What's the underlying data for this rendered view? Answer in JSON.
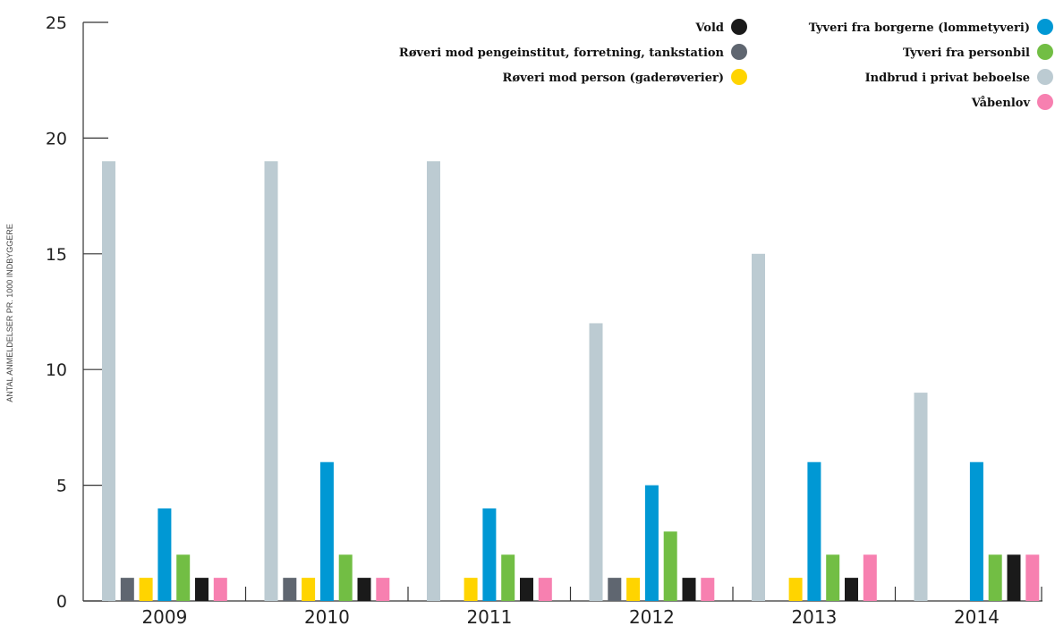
{
  "chart_data": {
    "type": "bar",
    "ylabel": "ANTAL ANMELDELSER PR. 1000 INDBYGGERE",
    "xlabel": "",
    "ylim": [
      0,
      25
    ],
    "yticks": [
      0,
      5,
      10,
      15,
      20,
      25
    ],
    "grid": false,
    "legend_position": "top-right",
    "categories": [
      "2009",
      "2010",
      "2011",
      "2012",
      "2013",
      "2014"
    ],
    "series": [
      {
        "name": "Indbrud i privat beboelse",
        "color": "#bccbd2",
        "values": [
          19,
          19,
          19,
          12,
          15,
          9
        ]
      },
      {
        "name": "Røveri mod pengeinstitut, forretning, tankstation",
        "color": "#5f6670",
        "values": [
          1,
          1,
          0,
          1,
          0,
          0
        ]
      },
      {
        "name": "Røveri mod person (gaderøverier)",
        "color": "#ffd400",
        "values": [
          1,
          1,
          1,
          1,
          1,
          0
        ]
      },
      {
        "name": "Tyveri fra borgerne (lommetyveri)",
        "color": "#0098d4",
        "values": [
          4,
          6,
          4,
          5,
          6,
          6
        ]
      },
      {
        "name": "Tyveri fra personbil",
        "color": "#72be44",
        "values": [
          2,
          2,
          2,
          3,
          2,
          2
        ]
      },
      {
        "name": "Vold",
        "color": "#1a1a1a",
        "values": [
          1,
          1,
          1,
          1,
          1,
          2
        ]
      },
      {
        "name": "Våbenlov",
        "color": "#f780b0",
        "values": [
          1,
          1,
          1,
          1,
          2,
          2
        ]
      }
    ],
    "legend_left_column": [
      "Vold",
      "Røveri mod pengeinstitut, forretning, tankstation",
      "Røveri mod person (gaderøverier)"
    ],
    "legend_right_column": [
      "Tyveri fra borgerne (lommetyveri)",
      "Tyveri fra personbil",
      "Indbrud i privat beboelse",
      "Våbenlov"
    ]
  }
}
